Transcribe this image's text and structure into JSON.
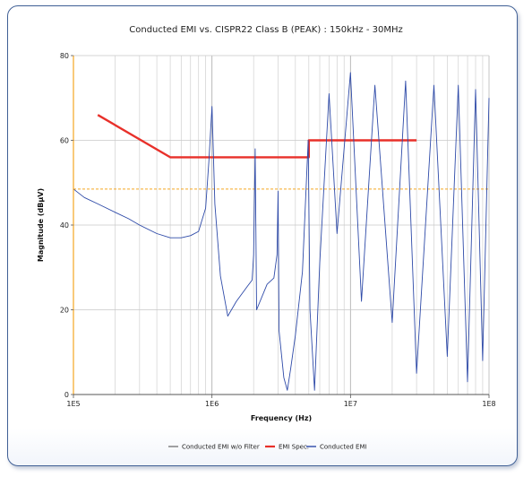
{
  "chart_data": {
    "type": "line",
    "title": "Conducted EMI vs. CISPR22 Class B (PEAK) : 150kHz - 30MHz",
    "xlabel": "Frequency (Hz)",
    "ylabel": "Magnitude (dBµV)",
    "xscale": "log",
    "xlim": [
      100000,
      100000000
    ],
    "ylim": [
      0,
      80
    ],
    "xticks": [
      {
        "value": 100000,
        "label": "1E5"
      },
      {
        "value": 1000000,
        "label": "1E6"
      },
      {
        "value": 10000000,
        "label": "1E7"
      },
      {
        "value": 100000000,
        "label": "1E8"
      }
    ],
    "yticks": [
      0,
      20,
      40,
      60,
      80
    ],
    "grid": true,
    "legend_position": "bottom",
    "reference_line": {
      "y": 48.5,
      "color": "#f5a623"
    },
    "series": [
      {
        "name": "Conducted EMI w/o Filter",
        "color": "#7a7a7a",
        "points": []
      },
      {
        "name": "EMI Spec.",
        "color": "#e8302a",
        "points": [
          [
            150000,
            66
          ],
          [
            500000,
            56
          ],
          [
            5000000,
            56
          ],
          [
            5000000,
            60
          ],
          [
            30000000,
            60
          ]
        ]
      },
      {
        "name": "Conducted EMI",
        "color": "#2e4aa8",
        "points": [
          [
            100000,
            48.5
          ],
          [
            120000,
            46.5
          ],
          [
            150000,
            45
          ],
          [
            200000,
            43
          ],
          [
            250000,
            41.5
          ],
          [
            300000,
            40
          ],
          [
            400000,
            38
          ],
          [
            500000,
            37
          ],
          [
            600000,
            37
          ],
          [
            700000,
            37.5
          ],
          [
            800000,
            38.5
          ],
          [
            900000,
            44
          ],
          [
            950000,
            55
          ],
          [
            1000000,
            68
          ],
          [
            1050000,
            45
          ],
          [
            1150000,
            28
          ],
          [
            1300000,
            18.5
          ],
          [
            1500000,
            22
          ],
          [
            1800000,
            25.5
          ],
          [
            1950000,
            27
          ],
          [
            2000000,
            33
          ],
          [
            2050000,
            58
          ],
          [
            2100000,
            20
          ],
          [
            2500000,
            26
          ],
          [
            2800000,
            27.5
          ],
          [
            2950000,
            33
          ],
          [
            3000000,
            48
          ],
          [
            3050000,
            15
          ],
          [
            3300000,
            4
          ],
          [
            3500000,
            1
          ],
          [
            3700000,
            6
          ],
          [
            4000000,
            14
          ],
          [
            4500000,
            29
          ],
          [
            4950000,
            60
          ],
          [
            5100000,
            20
          ],
          [
            5500000,
            1
          ],
          [
            6000000,
            31
          ],
          [
            7000000,
            71
          ],
          [
            8000000,
            38
          ],
          [
            10000000,
            76
          ],
          [
            12000000,
            22
          ],
          [
            15000000,
            73
          ],
          [
            20000000,
            17
          ],
          [
            25000000,
            74
          ],
          [
            30000000,
            5
          ],
          [
            40000000,
            73
          ],
          [
            50000000,
            9
          ],
          [
            60000000,
            73
          ],
          [
            70000000,
            3
          ],
          [
            80000000,
            72
          ],
          [
            90000000,
            8
          ],
          [
            100000000,
            70
          ]
        ]
      }
    ]
  }
}
